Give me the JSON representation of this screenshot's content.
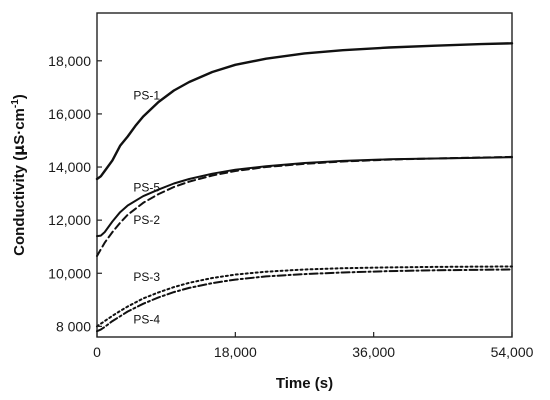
{
  "chart_data": {
    "type": "line",
    "xlabel": "Time (s)",
    "ylabel_main": "Conductivity (",
    "ylabel_mu": "μ",
    "ylabel_unit": "S·cm",
    "ylabel_exp": "-1",
    "ylabel_close": ")",
    "xlim": [
      0,
      54000
    ],
    "ylim": [
      7600,
      19800
    ],
    "x_ticks": [
      {
        "value": 0,
        "label": "0"
      },
      {
        "value": 18000,
        "label": "18,000"
      },
      {
        "value": 36000,
        "label": "36,000"
      },
      {
        "value": 54000,
        "label": "54,000"
      }
    ],
    "y_ticks": [
      {
        "value": 8000,
        "label": "8 000"
      },
      {
        "value": 10000,
        "label": "10,000"
      },
      {
        "value": 12000,
        "label": "12,000"
      },
      {
        "value": 14000,
        "label": "14,000"
      },
      {
        "value": 16000,
        "label": "16,000"
      },
      {
        "value": 18000,
        "label": "18,000"
      }
    ],
    "grid": false,
    "legend": "inline labels",
    "series": [
      {
        "name": "PS-1",
        "style": "solid",
        "stroke_width": 2.4,
        "x": [
          0,
          500,
          1000,
          2000,
          3000,
          4000,
          5000,
          6000,
          8000,
          10000,
          12000,
          15000,
          18000,
          22000,
          27000,
          32000,
          38000,
          44000,
          50000,
          54000
        ],
        "y": [
          13550,
          13650,
          13850,
          14250,
          14800,
          15150,
          15550,
          15900,
          16450,
          16880,
          17200,
          17580,
          17850,
          18080,
          18280,
          18400,
          18500,
          18570,
          18630,
          18660
        ]
      },
      {
        "name": "PS-5",
        "style": "solid",
        "stroke_width": 2,
        "x": [
          0,
          500,
          1000,
          2000,
          3000,
          4000,
          6000,
          8000,
          10000,
          12000,
          15000,
          18000,
          22000,
          27000,
          32000,
          38000,
          44000,
          50000,
          54000
        ],
        "y": [
          11400,
          11420,
          11550,
          11950,
          12300,
          12550,
          12900,
          13150,
          13380,
          13550,
          13750,
          13900,
          14030,
          14150,
          14230,
          14290,
          14320,
          14350,
          14370
        ]
      },
      {
        "name": "PS-2",
        "style": "dashed",
        "stroke_width": 2,
        "x": [
          0,
          500,
          1000,
          2000,
          3000,
          4000,
          6000,
          8000,
          10000,
          12000,
          15000,
          18000,
          22000,
          27000,
          32000,
          38000,
          44000,
          50000,
          54000
        ],
        "y": [
          10650,
          10900,
          11150,
          11550,
          11900,
          12200,
          12650,
          12980,
          13250,
          13450,
          13680,
          13850,
          14000,
          14120,
          14210,
          14280,
          14320,
          14360,
          14380
        ]
      },
      {
        "name": "PS-3",
        "style": "dotted",
        "stroke_width": 2,
        "x": [
          0,
          500,
          1000,
          2000,
          3000,
          4000,
          6000,
          8000,
          10000,
          12000,
          15000,
          18000,
          22000,
          27000,
          32000,
          38000,
          44000,
          50000,
          54000
        ],
        "y": [
          8000,
          8100,
          8200,
          8400,
          8580,
          8750,
          9050,
          9280,
          9480,
          9640,
          9820,
          9950,
          10060,
          10140,
          10190,
          10220,
          10240,
          10250,
          10255
        ]
      },
      {
        "name": "PS-4",
        "style": "dashdot",
        "stroke_width": 2,
        "x": [
          0,
          500,
          1000,
          2000,
          3000,
          4000,
          6000,
          8000,
          10000,
          12000,
          15000,
          18000,
          22000,
          27000,
          32000,
          38000,
          44000,
          50000,
          54000
        ],
        "y": [
          7820,
          7880,
          7980,
          8200,
          8380,
          8560,
          8850,
          9090,
          9290,
          9450,
          9630,
          9760,
          9880,
          9970,
          10030,
          10080,
          10110,
          10130,
          10140
        ]
      }
    ],
    "series_labels": [
      {
        "text": "PS-1",
        "x": 8200,
        "y": 16550
      },
      {
        "text": "PS-5",
        "x": 8200,
        "y": 13080
      },
      {
        "text": "PS-2",
        "x": 8200,
        "y": 11850
      },
      {
        "text": "PS-3",
        "x": 8200,
        "y": 9700
      },
      {
        "text": "PS-4",
        "x": 8200,
        "y": 8100
      }
    ]
  }
}
